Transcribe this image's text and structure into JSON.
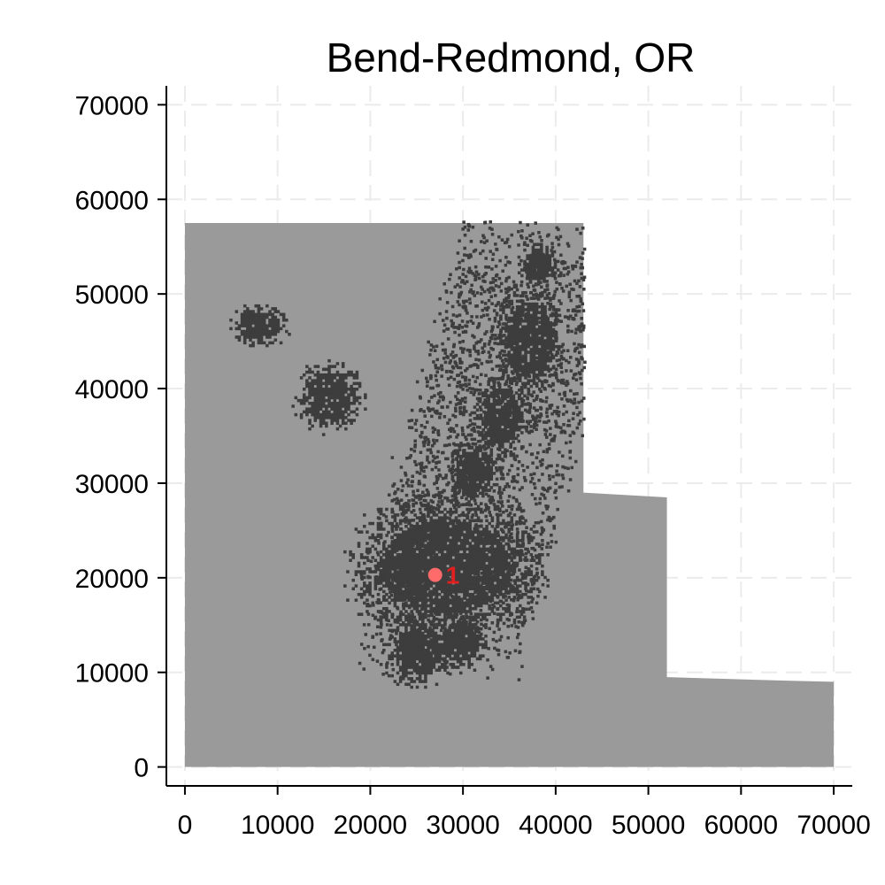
{
  "chart_data": {
    "type": "heatmap",
    "title": "Bend-Redmond, OR",
    "xlabel": "",
    "ylabel": "",
    "xlim": [
      -2000,
      72000
    ],
    "ylim": [
      -2000,
      72000
    ],
    "x_ticks": [
      0,
      10000,
      20000,
      30000,
      40000,
      50000,
      60000,
      70000
    ],
    "y_ticks": [
      0,
      10000,
      20000,
      30000,
      40000,
      50000,
      60000,
      70000
    ],
    "x_tick_labels": [
      "0",
      "10000",
      "20000",
      "30000",
      "40000",
      "50000",
      "60000",
      "70000"
    ],
    "y_tick_labels": [
      "0",
      "10000",
      "20000",
      "30000",
      "40000",
      "50000",
      "60000",
      "70000"
    ],
    "grid": true,
    "grid_style": "dashed",
    "region_outline": [
      [
        0,
        0
      ],
      [
        70000,
        0
      ],
      [
        70000,
        9000
      ],
      [
        62000,
        9200
      ],
      [
        52000,
        9500
      ],
      [
        52000,
        28500
      ],
      [
        43000,
        29000
      ],
      [
        43000,
        57500
      ],
      [
        0,
        57500
      ]
    ],
    "dense_clusters": [
      {
        "x": 28000,
        "y": 21000,
        "rx": 7000,
        "ry": 5000
      },
      {
        "x": 25000,
        "y": 12000,
        "rx": 2500,
        "ry": 2500
      },
      {
        "x": 29500,
        "y": 13000,
        "rx": 2000,
        "ry": 2000
      },
      {
        "x": 37000,
        "y": 45000,
        "rx": 2500,
        "ry": 4000
      },
      {
        "x": 38000,
        "y": 53000,
        "rx": 1500,
        "ry": 1500
      },
      {
        "x": 8000,
        "y": 46500,
        "rx": 2000,
        "ry": 1500
      },
      {
        "x": 31000,
        "y": 31000,
        "rx": 2000,
        "ry": 2500
      },
      {
        "x": 15500,
        "y": 39000,
        "rx": 2500,
        "ry": 2500
      },
      {
        "x": 34000,
        "y": 37000,
        "rx": 2000,
        "ry": 3000
      }
    ],
    "highlight": {
      "label": "1",
      "x": 27000,
      "y": 20300,
      "color": "#ff6b6b"
    },
    "colors": {
      "region": "#9a9a9a",
      "region_light": "#b5b5b5",
      "developed": "#3d3d3d",
      "highlight": "#ff6b6b",
      "label": "#e02020",
      "grid": "#ebebeb",
      "axis": "#000000"
    }
  }
}
